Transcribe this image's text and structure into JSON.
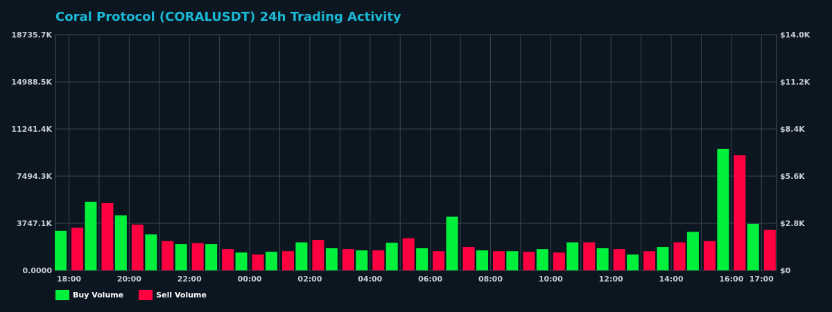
{
  "chart_data": {
    "type": "bar",
    "title": "Coral Protocol (CORALUSDT) 24h Trading Activity",
    "y_left": {
      "ticks": [
        "0.0000",
        "3747.1K",
        "7494.3K",
        "11241.4K",
        "14988.5K",
        "18735.7K"
      ],
      "range": [
        0,
        18735.7
      ]
    },
    "y_right": {
      "ticks": [
        "$0",
        "$2.8K",
        "$5.6K",
        "$8.4K",
        "$11.2K",
        "$14.0K"
      ],
      "range": [
        0,
        14.0
      ]
    },
    "x_tick_labels": [
      "18:00",
      "20:00",
      "22:00",
      "00:00",
      "02:00",
      "04:00",
      "06:00",
      "08:00",
      "10:00",
      "12:00",
      "14:00",
      "16:00",
      "17:00"
    ],
    "x_tick_hours": [
      18,
      20,
      22,
      24,
      26,
      28,
      30,
      32,
      34,
      36,
      38,
      40,
      41
    ],
    "hours": [
      18,
      19,
      20,
      21,
      22,
      23,
      24,
      25,
      26,
      27,
      28,
      29,
      30,
      31,
      32,
      33,
      34,
      35,
      36,
      37,
      38,
      39,
      40,
      41
    ],
    "series": [
      {
        "name": "Buy Volume",
        "color": "#00f03c",
        "values": [
          3150,
          5460,
          4380,
          2860,
          2090,
          2090,
          1420,
          1480,
          2230,
          1760,
          1590,
          2200,
          1760,
          4270,
          1590,
          1530,
          1700,
          2230,
          1760,
          1260,
          1870,
          3060,
          9650,
          3700
        ]
      },
      {
        "name": "Sell Volume",
        "color": "#ff0040",
        "values": [
          3390,
          5350,
          3640,
          2330,
          2170,
          1700,
          1260,
          1530,
          2420,
          1700,
          1590,
          2560,
          1530,
          1870,
          1530,
          1480,
          1420,
          2230,
          1700,
          1530,
          2230,
          2330,
          9150,
          3220
        ]
      }
    ],
    "grid": true,
    "legend": "bottom-left"
  }
}
